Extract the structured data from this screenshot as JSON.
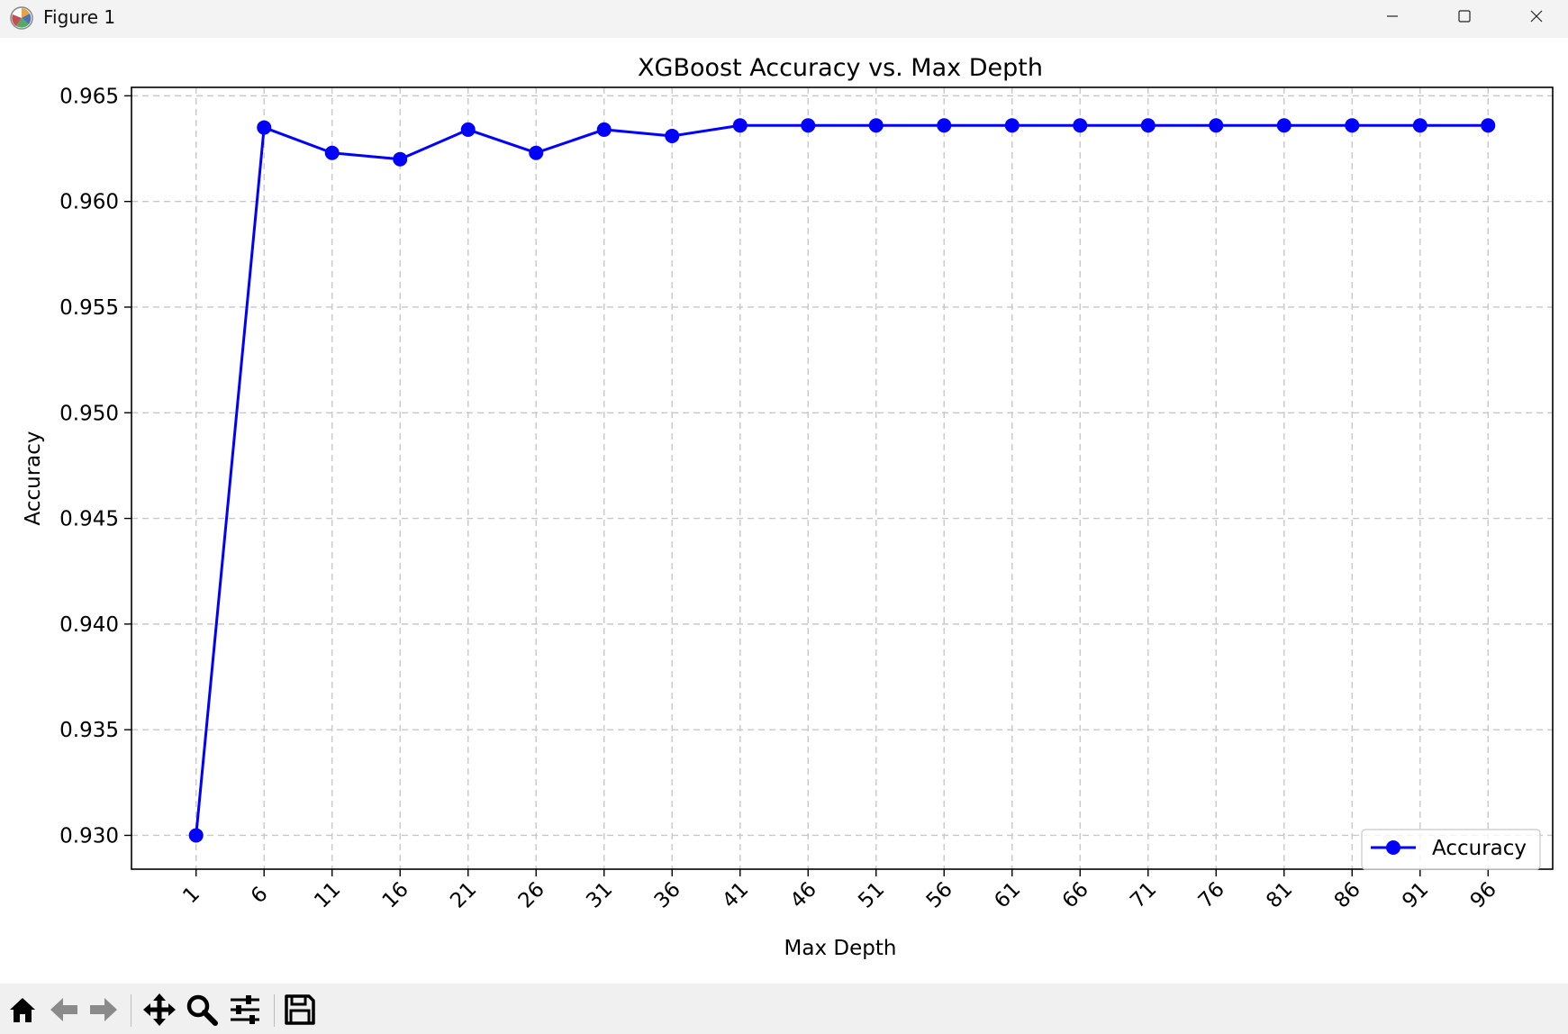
{
  "window": {
    "title": "Figure 1"
  },
  "toolbar": {
    "buttons": [
      {
        "name": "home-icon"
      },
      {
        "name": "back-arrow-icon"
      },
      {
        "name": "forward-arrow-icon"
      },
      {
        "name": "pan-icon"
      },
      {
        "name": "zoom-icon"
      },
      {
        "name": "configure-subplots-icon"
      },
      {
        "name": "save-icon"
      }
    ]
  },
  "colors": {
    "series": "#0000ff",
    "grid": "#c8c8c8",
    "titlebar": "#f3f3f3",
    "toolbar": "#f0f0f0"
  },
  "chart_data": {
    "type": "line",
    "title": "XGBoost Accuracy vs. Max Depth",
    "xlabel": "Max Depth",
    "ylabel": "Accuracy",
    "x": [
      1,
      6,
      11,
      16,
      21,
      26,
      31,
      36,
      41,
      46,
      51,
      56,
      61,
      66,
      71,
      76,
      81,
      86,
      91,
      96
    ],
    "xticks": [
      "1",
      "6",
      "11",
      "16",
      "21",
      "26",
      "31",
      "36",
      "41",
      "46",
      "51",
      "56",
      "61",
      "66",
      "71",
      "76",
      "81",
      "86",
      "91",
      "96"
    ],
    "yticks": [
      "0.930",
      "0.935",
      "0.940",
      "0.945",
      "0.950",
      "0.955",
      "0.960",
      "0.965"
    ],
    "ylim": [
      0.9284,
      0.9654
    ],
    "xlim": [
      -3.75,
      100.75
    ],
    "grid": true,
    "legend_position": "lower right",
    "series": [
      {
        "name": "Accuracy",
        "color": "#0000ff",
        "marker": "circle",
        "values": [
          0.93,
          0.9635,
          0.9623,
          0.962,
          0.9634,
          0.9623,
          0.9634,
          0.9631,
          0.9636,
          0.9636,
          0.9636,
          0.9636,
          0.9636,
          0.9636,
          0.9636,
          0.9636,
          0.9636,
          0.9636,
          0.9636,
          0.9636
        ]
      }
    ]
  }
}
